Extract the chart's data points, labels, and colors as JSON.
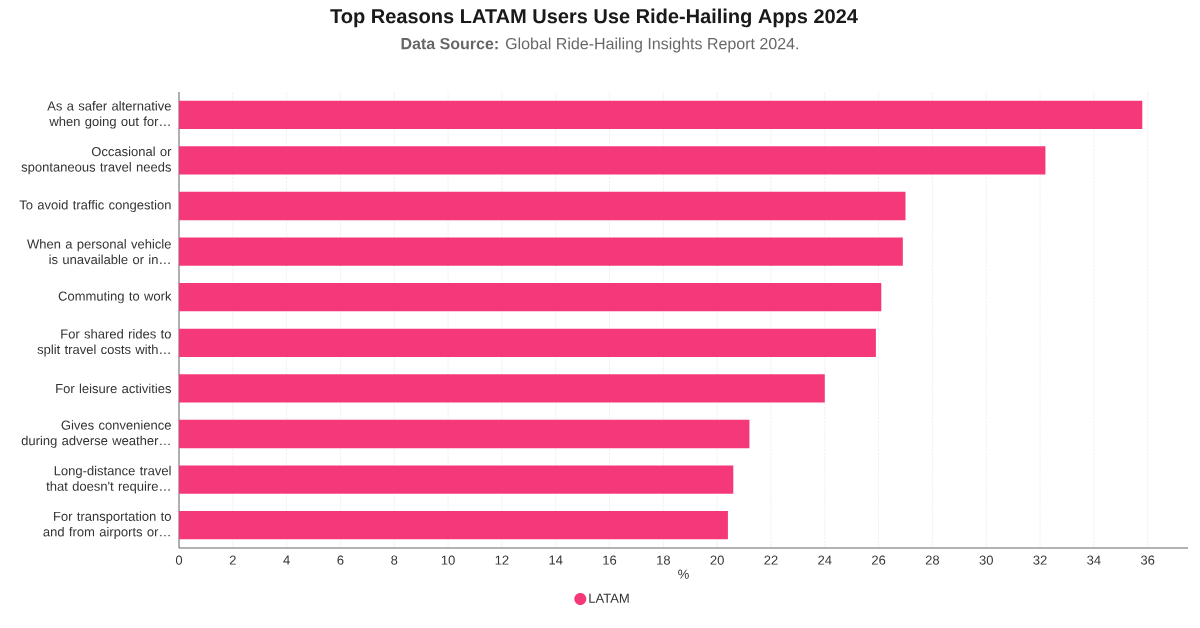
{
  "chart_data": {
    "type": "bar",
    "orientation": "horizontal",
    "title": "Top Reasons LATAM Users Use Ride-Hailing Apps 2024",
    "subtitle": "**Data Source:** Global Ride-Hailing Insights Report 2024.",
    "xlabel": "%",
    "categories": [
      "As a safer alternative when going out for…",
      "Occasional or spontaneous travel needs",
      "To avoid traffic congestion",
      "When a personal vehicle is unavailable or in…",
      "Commuting to work",
      "For shared rides to split travel costs with…",
      "For leisure activities",
      "Gives convenience during adverse weather…",
      "Long-distance travel that doesn't require…",
      "For transportation to and from airports or…"
    ],
    "series": [
      {
        "name": "LATAM",
        "color": "#f5387a",
        "values": [
          35.8,
          32.2,
          27.0,
          26.9,
          26.1,
          25.9,
          24.0,
          21.2,
          20.6,
          20.4
        ]
      }
    ],
    "xlim": [
      0,
      37.5
    ],
    "xticks": [
      0,
      2,
      4,
      6,
      8,
      10,
      12,
      14,
      16,
      18,
      20,
      22,
      24,
      26,
      28,
      30,
      32,
      34,
      36
    ],
    "grid": "x",
    "legend": "bottom"
  }
}
